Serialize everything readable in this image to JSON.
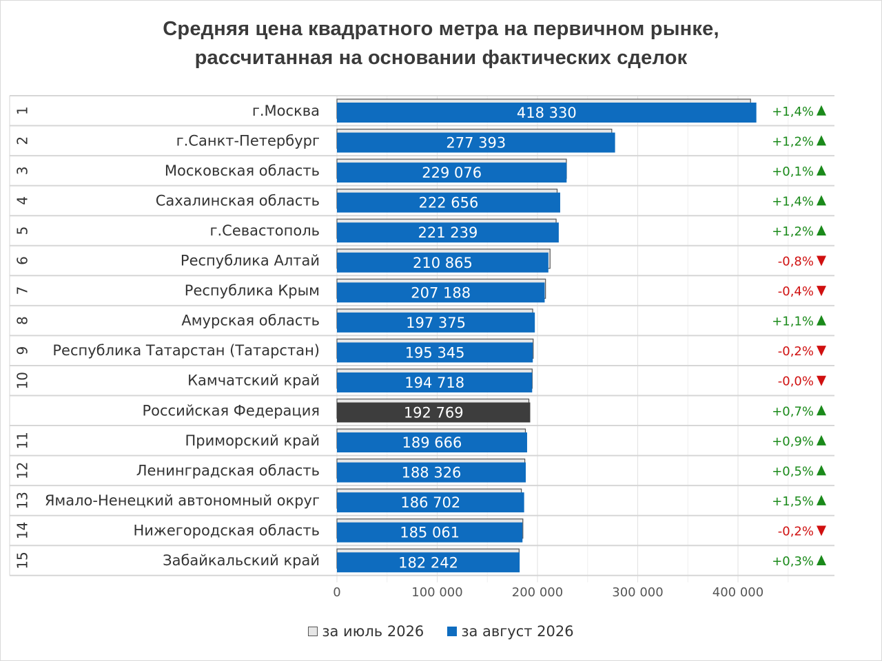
{
  "chart_data": {
    "type": "bar",
    "orientation": "horizontal",
    "title": "Средняя цена квадратного метра на первичном рынке,",
    "subtitle": "рассчитанная на основании фактических сделок",
    "xlim": [
      0,
      500000
    ],
    "x_ticks": [
      0,
      100000,
      200000,
      300000,
      400000
    ],
    "x_tick_labels": [
      "0",
      "100 000",
      "200 000",
      "300 000",
      "400 000"
    ],
    "grid": true,
    "legend_position": "bottom",
    "series": [
      {
        "name": "за июль 2026",
        "color": "#e6e6e6",
        "values": [
          412530,
          274100,
          228850,
          219600,
          218620,
          212560,
          208020,
          195230,
          195740,
          194720,
          191430,
          187970,
          187390,
          183940,
          185430,
          181700
        ]
      },
      {
        "name": "за август 2026",
        "color": "#0e6cbf",
        "values": [
          418330,
          277393,
          229076,
          222656,
          221239,
          210865,
          207188,
          197375,
          195345,
          194718,
          192769,
          189666,
          188326,
          186702,
          185061,
          182242
        ]
      }
    ],
    "categories": [
      "г.Москва",
      "г.Санкт-Петербург",
      "Московская область",
      "Сахалинская область",
      "г.Севастополь",
      "Республика Алтай",
      "Республика Крым",
      "Амурская область",
      "Республика Татарстан (Татарстан)",
      "Камчатский край",
      "Российская Федерация",
      "Приморский край",
      "Ленинградская область",
      "Ямало-Ненецкий автономный округ",
      "Нижегородская область",
      "Забайкальский край"
    ],
    "ranks": [
      "1",
      "2",
      "3",
      "4",
      "5",
      "6",
      "7",
      "8",
      "9",
      "10",
      "",
      "11",
      "12",
      "13",
      "14",
      "15"
    ],
    "value_labels": [
      "418 330",
      "277 393",
      "229 076",
      "222 656",
      "221 239",
      "210 865",
      "207 188",
      "197 375",
      "195 345",
      "194 718",
      "192 769",
      "189 666",
      "188 326",
      "186 702",
      "185 061",
      "182 242"
    ],
    "changes": [
      "+1,4%",
      "+1,2%",
      "+0,1%",
      "+1,4%",
      "+1,2%",
      "-0,8%",
      "-0,4%",
      "+1,1%",
      "-0,2%",
      "-0,0%",
      "+0,7%",
      "+0,9%",
      "+0,5%",
      "+1,5%",
      "-0,2%",
      "+0,3%"
    ],
    "directions": [
      "up",
      "up",
      "up",
      "up",
      "up",
      "down",
      "down",
      "up",
      "down",
      "down",
      "up",
      "up",
      "up",
      "up",
      "down",
      "up"
    ],
    "highlight_index": 10,
    "highlight_color": "#3d3d3d",
    "up_color": "#1a8a1a",
    "down_color": "#d01010"
  }
}
